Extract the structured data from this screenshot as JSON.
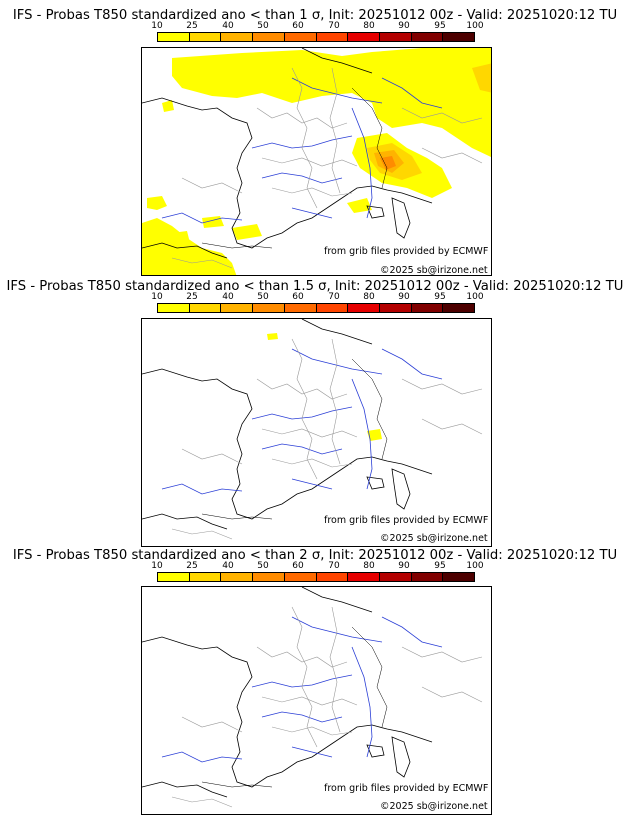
{
  "palette": [
    "#ffff00",
    "#ffd700",
    "#ffb300",
    "#ff8c00",
    "#ff6a00",
    "#ff4500",
    "#e60000",
    "#b30000",
    "#800000",
    "#4d0000"
  ],
  "ticks": [
    "10",
    "25",
    "40",
    "50",
    "60",
    "70",
    "80",
    "90",
    "95",
    "100"
  ],
  "panels": [
    {
      "title": "IFS - Probas T850  standardized ano < than 1 σ, Init: 20251012 00z - Valid: 20251020:12 TU",
      "credit_source": "from grib files provided by ECMWF",
      "credit_copyright": "©2025 sb@irizone.net"
    },
    {
      "title": "IFS - Probas T850  standardized ano < than 1.5 σ, Init: 20251012 00z - Valid: 20251020:12 TU",
      "credit_source": "from grib files provided by ECMWF",
      "credit_copyright": "©2025 sb@irizone.net"
    },
    {
      "title": "IFS - Probas T850  standardized ano < than 2 σ, Init: 20251012 00z - Valid: 20251020:12 TU",
      "credit_source": "from grib files provided by ECMWF",
      "credit_copyright": "©2025 sb@irizone.net"
    }
  ]
}
